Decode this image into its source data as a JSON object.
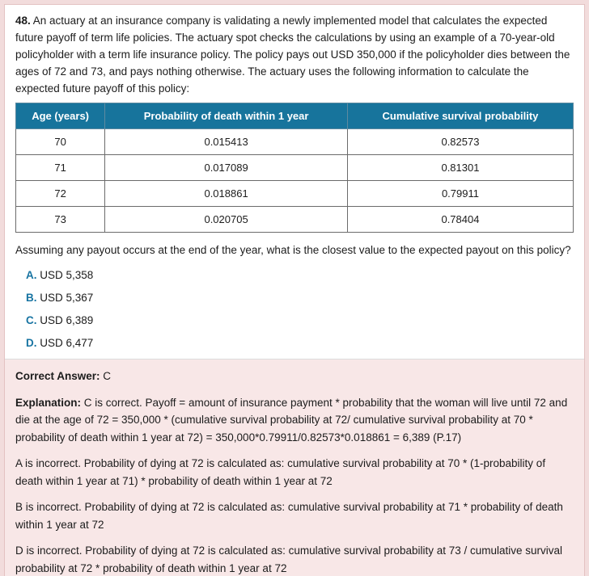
{
  "question": {
    "number": "48.",
    "text": " An actuary at an insurance company is validating a newly implemented model that calculates the expected future payoff of term life policies. The actuary spot checks the calculations by using an example of a 70-year-old policyholder with a term life insurance policy. The policy pays out USD 350,000 if the policyholder dies between the ages of 72 and 73, and pays nothing otherwise. The actuary uses the following information to calculate the expected future payoff of this policy:",
    "followup": "Assuming any payout occurs at the end of the year, what is the closest value to the expected payout on this policy?",
    "options": [
      {
        "letter": "A.",
        "text": " USD 5,358"
      },
      {
        "letter": "B.",
        "text": " USD 5,367"
      },
      {
        "letter": "C.",
        "text": " USD 6,389"
      },
      {
        "letter": "D.",
        "text": " USD 6,477"
      }
    ]
  },
  "table": {
    "headers": [
      "Age (years)",
      "Probability of death within 1 year",
      "Cumulative survival probability"
    ],
    "rows": [
      [
        "70",
        "0.015413",
        "0.82573"
      ],
      [
        "71",
        "0.017089",
        "0.81301"
      ],
      [
        "72",
        "0.018861",
        "0.79911"
      ],
      [
        "73",
        "0.020705",
        "0.78404"
      ]
    ]
  },
  "answer": {
    "correct_label": "Correct Answer:",
    "correct_value": " C",
    "explanation_label": "Explanation:",
    "explanation_text": " C is correct. Payoff = amount of insurance payment * probability that the woman will live until 72 and die at the age of 72 = 350,000 * (cumulative survival probability at 72/ cumulative survival probability at 70 * probability of death within 1 year at 72) = 350,000*0.79911/0.82573*0.018861 = 6,389 (P.17)",
    "incorrect": [
      "A is incorrect. Probability of dying at 72 is calculated as: cumulative survival probability at 70 * (1-probability of death within 1 year at 71) * probability of death within 1 year at 72",
      "B is incorrect. Probability of dying at 72 is calculated as: cumulative survival probability at 71 * probability of death within 1 year at 72",
      "D is incorrect. Probability of dying at 72 is calculated as: cumulative survival probability at 73 / cumulative survival probability at 72 *  probability of death within 1 year at 72"
    ]
  },
  "colors": {
    "table_header_bg": "#17749c",
    "option_letter": "#1874a2",
    "answer_section_bg": "#f8e7e7",
    "frame_bg": "#f2dcdc"
  }
}
